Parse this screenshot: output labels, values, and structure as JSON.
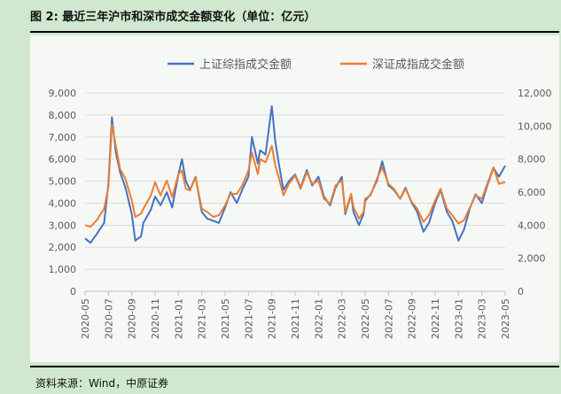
{
  "title": "图 2:  最近三年沪市和深市成交金额变化（单位：亿元）",
  "source": "资料来源：Wind，中原证券",
  "chart_data": {
    "type": "line",
    "title": "",
    "xlabel": "",
    "ylabel": "",
    "x_ticks": [
      "2020-05",
      "2020-07",
      "2020-09",
      "2020-11",
      "2021-01",
      "2021-03",
      "2021-05",
      "2021-07",
      "2021-09",
      "2021-11",
      "2022-01",
      "2022-03",
      "2022-05",
      "2022-07",
      "2022-09",
      "2022-11",
      "2023-01",
      "2023-03",
      "2023-05"
    ],
    "y_left": {
      "ticks": [
        "0",
        "1,000",
        "2,000",
        "3,000",
        "4,000",
        "5,000",
        "6,000",
        "7,000",
        "8,000",
        "9,000"
      ],
      "lim": [
        0,
        9000
      ]
    },
    "y_right": {
      "ticks": [
        "0",
        "2,000",
        "4,000",
        "6,000",
        "8,000",
        "10,000",
        "12,000"
      ],
      "lim": [
        0,
        12000
      ]
    },
    "grid": true,
    "legend_position": "top-center",
    "series": [
      {
        "name": "上证综指成交金额",
        "axis": "left",
        "color": "#4472c4",
        "x": [
          "2020-05",
          "2020-05-15",
          "2020-06",
          "2020-06-20",
          "2020-07",
          "2020-07-10",
          "2020-07-20",
          "2020-08",
          "2020-08-15",
          "2020-09",
          "2020-09-10",
          "2020-09-25",
          "2020-10",
          "2020-10-20",
          "2020-11",
          "2020-11-15",
          "2020-12",
          "2020-12-15",
          "2021-01",
          "2021-01-10",
          "2021-01-20",
          "2021-02",
          "2021-02-15",
          "2021-03",
          "2021-03-15",
          "2021-04",
          "2021-04-15",
          "2021-05",
          "2021-05-15",
          "2021-06",
          "2021-06-15",
          "2021-07",
          "2021-07-10",
          "2021-07-25",
          "2021-08",
          "2021-08-15",
          "2021-09",
          "2021-09-10",
          "2021-09-20",
          "2021-10",
          "2021-10-15",
          "2021-11",
          "2021-11-15",
          "2021-12",
          "2021-12-15",
          "2022-01",
          "2022-01-15",
          "2022-02",
          "2022-02-15",
          "2022-03",
          "2022-03-10",
          "2022-03-25",
          "2022-04",
          "2022-04-15",
          "2022-04-27",
          "2022-05",
          "2022-05-15",
          "2022-06",
          "2022-06-15",
          "2022-07",
          "2022-07-15",
          "2022-08",
          "2022-08-15",
          "2022-09",
          "2022-09-15",
          "2022-10",
          "2022-10-15",
          "2022-11",
          "2022-11-15",
          "2022-12",
          "2022-12-15",
          "2023-01",
          "2023-01-15",
          "2023-02",
          "2023-02-15",
          "2023-03",
          "2023-03-15",
          "2023-04",
          "2023-04-15",
          "2023-05"
        ],
        "values": [
          2400,
          2200,
          2600,
          3100,
          4900,
          7900,
          6300,
          5400,
          4700,
          3500,
          2300,
          2500,
          3100,
          3700,
          4300,
          3900,
          4500,
          3800,
          5300,
          6000,
          5000,
          4600,
          5200,
          3600,
          3300,
          3200,
          3100,
          3800,
          4500,
          4000,
          4600,
          5200,
          7000,
          5800,
          6400,
          6200,
          8400,
          6800,
          5700,
          4600,
          5000,
          5300,
          4700,
          5500,
          4800,
          5200,
          4300,
          3900,
          4700,
          5200,
          3500,
          4400,
          3600,
          3000,
          3500,
          4100,
          4400,
          5000,
          5900,
          4800,
          4600,
          4200,
          4700,
          4000,
          3600,
          2700,
          3100,
          4000,
          4600,
          3600,
          3200,
          2300,
          2800,
          3800,
          4400,
          4000,
          4800,
          5600,
          5200,
          5700
        ]
      },
      {
        "name": "深证成指成交金额",
        "axis": "right",
        "color": "#ed7d31",
        "x": [
          "2020-05",
          "2020-05-15",
          "2020-06",
          "2020-06-20",
          "2020-07",
          "2020-07-10",
          "2020-07-20",
          "2020-08",
          "2020-08-15",
          "2020-09",
          "2020-09-10",
          "2020-09-25",
          "2020-10",
          "2020-10-20",
          "2020-11",
          "2020-11-15",
          "2020-12",
          "2020-12-15",
          "2021-01",
          "2021-01-10",
          "2021-01-20",
          "2021-02",
          "2021-02-15",
          "2021-03",
          "2021-03-15",
          "2021-04",
          "2021-04-15",
          "2021-05",
          "2021-05-15",
          "2021-06",
          "2021-06-15",
          "2021-07",
          "2021-07-10",
          "2021-07-25",
          "2021-08",
          "2021-08-15",
          "2021-09",
          "2021-09-10",
          "2021-09-20",
          "2021-10",
          "2021-10-15",
          "2021-11",
          "2021-11-15",
          "2021-12",
          "2021-12-15",
          "2022-01",
          "2022-01-15",
          "2022-02",
          "2022-02-15",
          "2022-03",
          "2022-03-10",
          "2022-03-25",
          "2022-04",
          "2022-04-15",
          "2022-04-27",
          "2022-05",
          "2022-05-15",
          "2022-06",
          "2022-06-15",
          "2022-07",
          "2022-07-15",
          "2022-08",
          "2022-08-15",
          "2022-09",
          "2022-09-15",
          "2022-10",
          "2022-10-15",
          "2022-11",
          "2022-11-15",
          "2022-12",
          "2022-12-15",
          "2023-01",
          "2023-01-15",
          "2023-02",
          "2023-02-15",
          "2023-03",
          "2023-03-15",
          "2023-04",
          "2023-04-15",
          "2023-05"
        ],
        "values": [
          4000,
          3900,
          4300,
          5000,
          6300,
          10100,
          8800,
          7400,
          6800,
          5500,
          4500,
          4700,
          5000,
          5800,
          6600,
          5800,
          6700,
          5700,
          7100,
          7300,
          6200,
          6100,
          6900,
          5000,
          4800,
          4500,
          4600,
          5200,
          5900,
          5900,
          6400,
          7300,
          8400,
          7100,
          8000,
          7800,
          8800,
          7600,
          6800,
          5800,
          6500,
          7000,
          6200,
          7200,
          6500,
          6700,
          5600,
          5300,
          6400,
          6700,
          4800,
          5900,
          5100,
          4400,
          4800,
          5600,
          5800,
          6800,
          7500,
          6500,
          6200,
          5600,
          6200,
          5400,
          5000,
          4200,
          4600,
          5500,
          6200,
          5000,
          4600,
          4100,
          4300,
          5100,
          5800,
          5600,
          6500,
          7500,
          6500,
          6600
        ]
      }
    ]
  }
}
